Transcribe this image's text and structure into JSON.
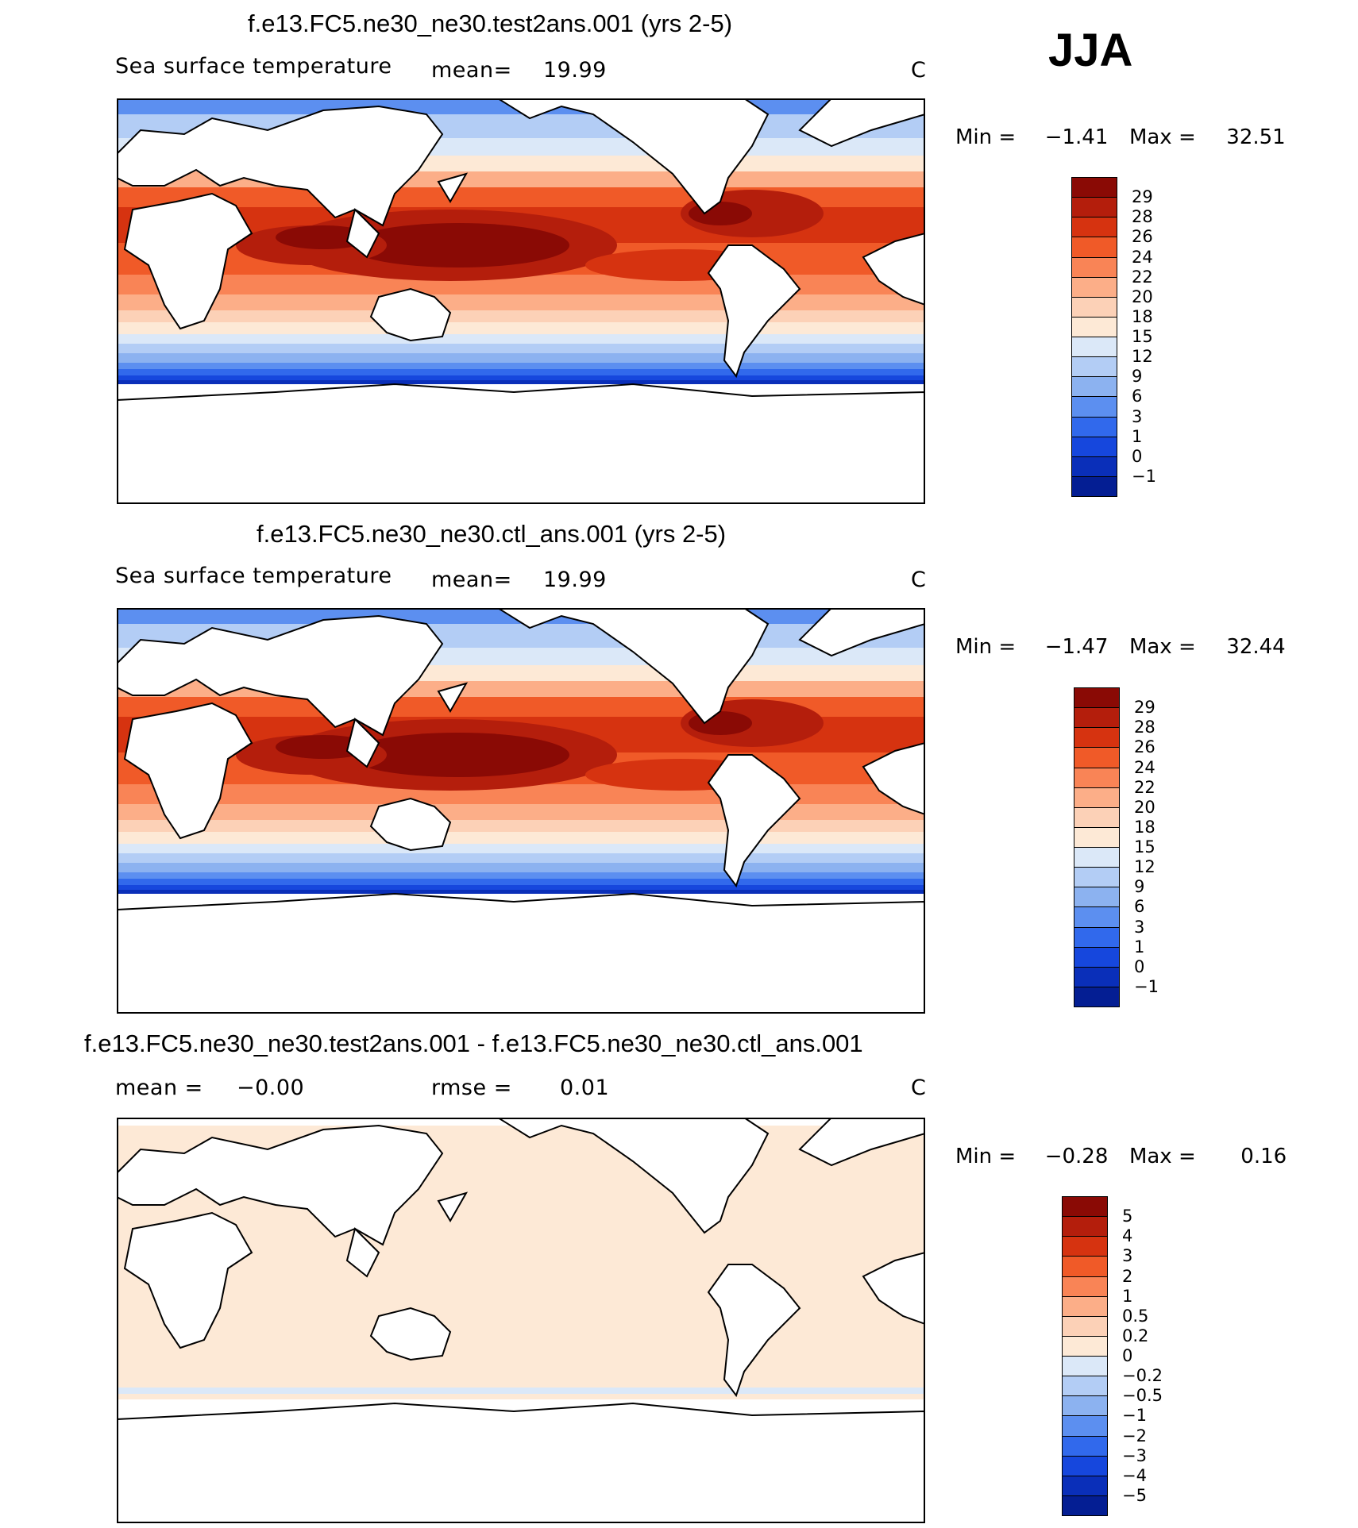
{
  "season": "JJA",
  "panels": [
    {
      "title": "f.e13.FC5.ne30_ne30.test2ans.001 (yrs 2-5)",
      "variable": "Sea surface temperature",
      "mean_label": "mean=",
      "mean_value": "19.99",
      "units": "C",
      "min_label": "Min =",
      "min_value": "−1.41",
      "max_label": "Max =",
      "max_value": "32.51",
      "colorbar": [
        "29",
        "28",
        "26",
        "24",
        "22",
        "20",
        "18",
        "15",
        "12",
        "9",
        "6",
        "3",
        "1",
        "0",
        "−1"
      ],
      "colors": [
        "#8a0a05",
        "#b41e0c",
        "#d63310",
        "#f05a28",
        "#f98456",
        "#fcae88",
        "#fcd1b7",
        "#fde9d6",
        "#dbe8f8",
        "#b3cdf5",
        "#8cb2f0",
        "#5c8ff0",
        "#3169ec",
        "#1647dd",
        "#0a2fb9",
        "#041e93"
      ]
    },
    {
      "title": "f.e13.FC5.ne30_ne30.ctl_ans.001 (yrs 2-5)",
      "variable": "Sea surface temperature",
      "mean_label": "mean=",
      "mean_value": "19.99",
      "units": "C",
      "min_label": "Min =",
      "min_value": "−1.47",
      "max_label": "Max =",
      "max_value": "32.44",
      "colorbar": [
        "29",
        "28",
        "26",
        "24",
        "22",
        "20",
        "18",
        "15",
        "12",
        "9",
        "6",
        "3",
        "1",
        "0",
        "−1"
      ],
      "colors": [
        "#8a0a05",
        "#b41e0c",
        "#d63310",
        "#f05a28",
        "#f98456",
        "#fcae88",
        "#fcd1b7",
        "#fde9d6",
        "#dbe8f8",
        "#b3cdf5",
        "#8cb2f0",
        "#5c8ff0",
        "#3169ec",
        "#1647dd",
        "#0a2fb9",
        "#041e93"
      ]
    },
    {
      "title": "f.e13.FC5.ne30_ne30.test2ans.001 - f.e13.FC5.ne30_ne30.ctl_ans.001",
      "mean_label": "mean =",
      "mean_value": "−0.00",
      "rmse_label": "rmse =",
      "rmse_value": "0.01",
      "units": "C",
      "min_label": "Min =",
      "min_value": "−0.28",
      "max_label": "Max =",
      "max_value": "0.16",
      "colorbar": [
        "5",
        "4",
        "3",
        "2",
        "1",
        "0.5",
        "0.2",
        "0",
        "−0.2",
        "−0.5",
        "−1",
        "−2",
        "−3",
        "−4",
        "−5"
      ],
      "colors": [
        "#8a0a05",
        "#b41e0c",
        "#d63310",
        "#f05a28",
        "#f98456",
        "#fcae88",
        "#fcd1b7",
        "#fde9d6",
        "#dbe8f8",
        "#b3cdf5",
        "#8cb2f0",
        "#5c8ff0",
        "#3169ec",
        "#1647dd",
        "#0a2fb9",
        "#041e93"
      ]
    }
  ]
}
